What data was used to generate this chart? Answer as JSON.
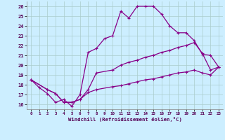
{
  "xlabel": "Windchill (Refroidissement éolien,°C)",
  "bg_color": "#cceeff",
  "grid_color": "#aacccc",
  "line_color": "#880088",
  "xlim": [
    -0.5,
    23.5
  ],
  "ylim": [
    15.5,
    26.5
  ],
  "xticks": [
    0,
    1,
    2,
    3,
    4,
    5,
    6,
    7,
    8,
    9,
    10,
    11,
    12,
    13,
    14,
    15,
    16,
    17,
    18,
    19,
    20,
    21,
    22,
    23
  ],
  "yticks": [
    16,
    17,
    18,
    19,
    20,
    21,
    22,
    23,
    24,
    25,
    26
  ],
  "line1_x": [
    0,
    1,
    2,
    3,
    4,
    5,
    6,
    7,
    8,
    9,
    10,
    11,
    12,
    13,
    14,
    15,
    16,
    17,
    18,
    19,
    20,
    21,
    22,
    23
  ],
  "line1_y": [
    18.5,
    17.7,
    17.1,
    16.2,
    16.5,
    15.8,
    17.0,
    21.3,
    21.7,
    22.7,
    23.0,
    25.5,
    24.8,
    26.0,
    26.0,
    26.0,
    25.2,
    24.0,
    23.3,
    23.3,
    22.5,
    21.1,
    21.0,
    19.8
  ],
  "line2_x": [
    0,
    2,
    3,
    4,
    5,
    6,
    7,
    8,
    10,
    11,
    12,
    13,
    14,
    15,
    16,
    17,
    18,
    19,
    20,
    21,
    22,
    23
  ],
  "line2_y": [
    18.5,
    17.5,
    17.1,
    16.2,
    16.2,
    16.5,
    17.5,
    19.2,
    19.5,
    20.0,
    20.3,
    20.5,
    20.8,
    21.0,
    21.3,
    21.5,
    21.8,
    22.0,
    22.3,
    21.2,
    19.5,
    19.8
  ],
  "line3_x": [
    0,
    2,
    3,
    4,
    5,
    6,
    7,
    8,
    10,
    11,
    12,
    13,
    14,
    15,
    16,
    17,
    18,
    19,
    20,
    21,
    22,
    23
  ],
  "line3_y": [
    18.5,
    17.5,
    17.1,
    16.2,
    16.2,
    16.5,
    17.2,
    17.5,
    17.8,
    17.9,
    18.1,
    18.3,
    18.5,
    18.6,
    18.8,
    19.0,
    19.2,
    19.3,
    19.5,
    19.2,
    19.0,
    19.8
  ]
}
